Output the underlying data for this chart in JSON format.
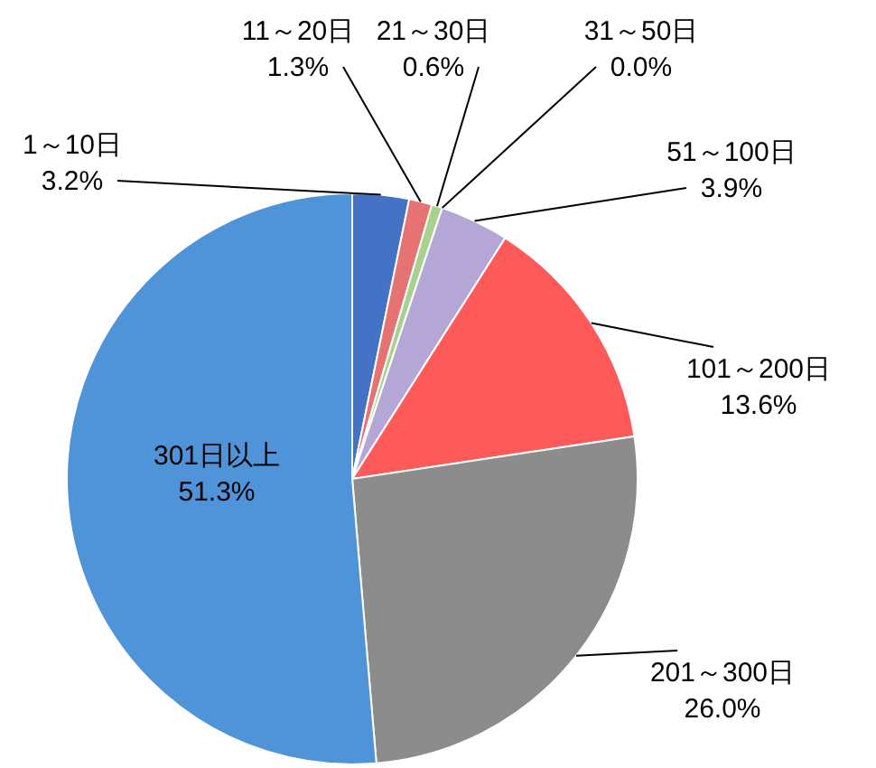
{
  "chart_data": {
    "type": "pie",
    "categories": [
      "1～10日",
      "11～20日",
      "21～30日",
      "31～50日",
      "51～100日",
      "101～200日",
      "201～300日",
      "301日以上"
    ],
    "values": [
      3.2,
      1.3,
      0.6,
      0.0,
      3.9,
      13.6,
      26.0,
      51.3
    ],
    "value_labels": [
      "3.2%",
      "1.3%",
      "0.6%",
      "0.0%",
      "3.9%",
      "13.6%",
      "26.0%",
      "51.3%"
    ],
    "colors": [
      "#4472c4",
      "#e57373",
      "#a9d18e",
      "#70ad47",
      "#b4a7d6",
      "#ff5a5a",
      "#8c8c8c",
      "#4f93d8"
    ]
  }
}
